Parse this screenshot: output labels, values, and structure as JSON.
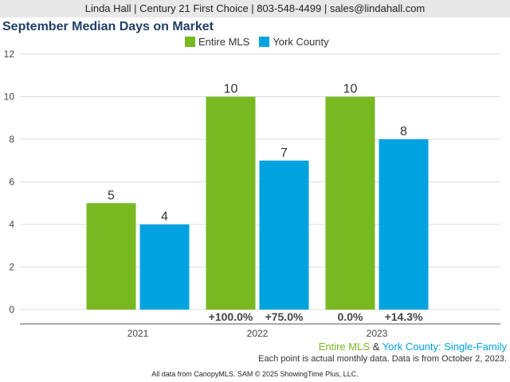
{
  "header": {
    "text": "Linda Hall | Century 21 First Choice | 803-548-4499 | sales@lindahall.com"
  },
  "footer": {
    "subtitle_part1": "Entire MLS",
    "subtitle_amp": " & ",
    "subtitle_part2": "York County",
    "subtitle_rest": ": Single-Family",
    "note": "Each point is actual monthly data. Data is from October 2, 2023.",
    "source": "All data from CanopyMLS. SAM © 2025 ShowingTime Plus, LLC."
  },
  "chart_data": {
    "type": "bar",
    "title": "September Median Days on Market",
    "categories": [
      "2021",
      "2022",
      "2023"
    ],
    "series": [
      {
        "name": "Entire MLS",
        "color": "#78b922",
        "values": [
          5,
          10,
          10
        ],
        "changes": [
          "",
          "+100.0%",
          "0.0%"
        ]
      },
      {
        "name": "York County",
        "color": "#00a3e0",
        "values": [
          4,
          7,
          8
        ],
        "changes": [
          "",
          "+75.0%",
          "+14.3%"
        ]
      }
    ],
    "ylim": [
      0,
      12
    ],
    "yticks": [
      0,
      2,
      4,
      6,
      8,
      10,
      12
    ],
    "grid": true,
    "legend": "top-center"
  }
}
